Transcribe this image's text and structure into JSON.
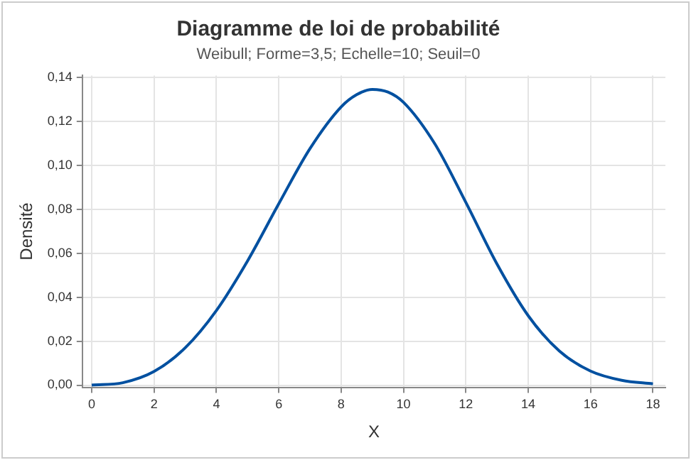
{
  "chart_data": {
    "type": "line",
    "title": "Diagramme de loi de probabilité",
    "subtitle": "Weibull; Forme=3,5; Echelle=10; Seuil=0",
    "xlabel": "X",
    "ylabel": "Densité",
    "x": [
      0,
      1,
      2,
      3,
      4,
      5,
      6,
      7,
      8,
      8.5,
      9,
      9.5,
      10,
      11,
      12,
      13,
      14,
      15,
      16,
      17,
      18
    ],
    "series": [
      {
        "color": "#0050a0",
        "values": [
          0,
          0.0011,
          0.0062,
          0.017,
          0.034,
          0.0566,
          0.0826,
          0.1077,
          0.1267,
          0.1323,
          0.1347,
          0.1335,
          0.1288,
          0.11,
          0.0832,
          0.0551,
          0.0316,
          0.0155,
          0.0064,
          0.0022,
          0.0006
        ]
      }
    ],
    "xlim": [
      -0.3,
      18.4
    ],
    "xticks": [
      0,
      2,
      4,
      6,
      8,
      10,
      12,
      14,
      16,
      18
    ],
    "ylim": [
      -0.001,
      0.141
    ],
    "yticks": [
      {
        "value": 0,
        "label": "0,00"
      },
      {
        "value": 0.02,
        "label": "0,02"
      },
      {
        "value": 0.04,
        "label": "0,04"
      },
      {
        "value": 0.06,
        "label": "0,06"
      },
      {
        "value": 0.08,
        "label": "0,08"
      },
      {
        "value": 0.1,
        "label": "0,10"
      },
      {
        "value": 0.12,
        "label": "0,12"
      },
      {
        "value": 0.14,
        "label": "0,14"
      }
    ],
    "grid": true,
    "legend": false,
    "marker": "none",
    "line_style": "solid"
  }
}
